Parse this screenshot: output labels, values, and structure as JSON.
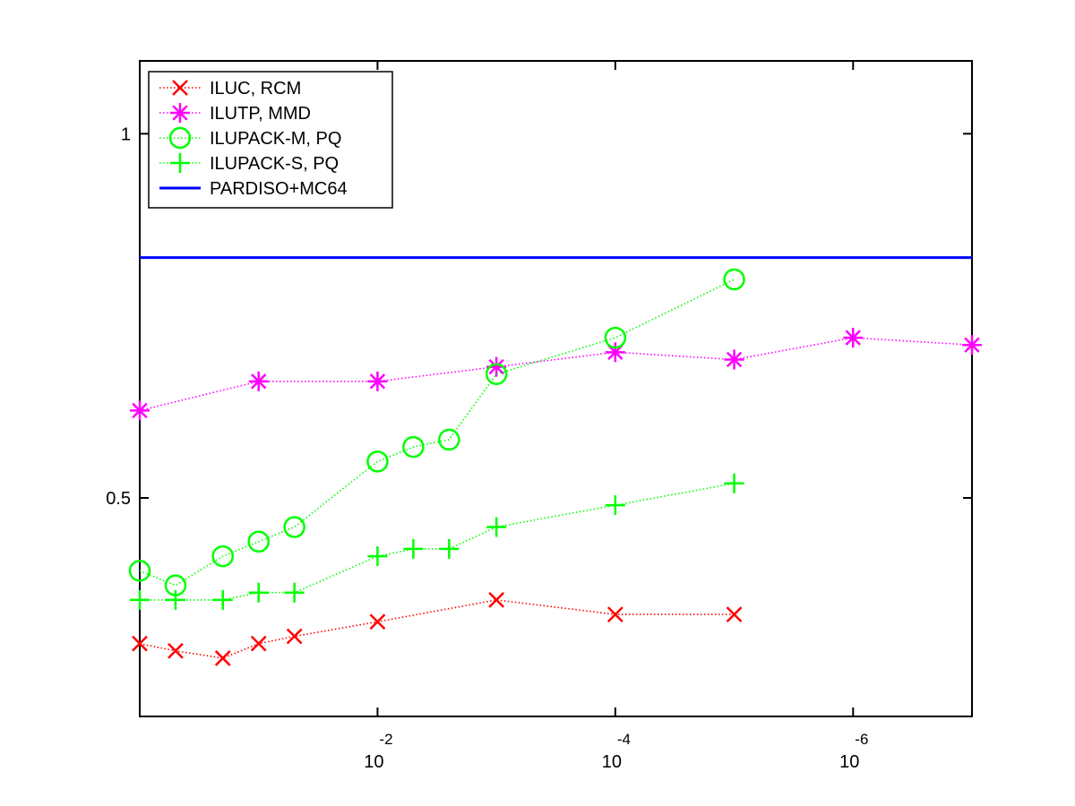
{
  "chart_data": {
    "type": "line",
    "x_scale": "log-reversed",
    "xlim": [
      1,
      1e-07
    ],
    "ylim": [
      0.2,
      1.1
    ],
    "grid": false,
    "legend_position": "top-left",
    "x_ticks": [
      {
        "value": 0.01,
        "base": "10",
        "exp": "-2"
      },
      {
        "value": 0.0001,
        "base": "10",
        "exp": "-4"
      },
      {
        "value": 1e-06,
        "base": "10",
        "exp": "-6"
      }
    ],
    "y_ticks": [
      {
        "value": 0.5,
        "label": "0.5"
      },
      {
        "value": 1,
        "label": "1"
      }
    ],
    "series": [
      {
        "name": "ILUC, RCM",
        "color": "#ff0000",
        "marker": "x",
        "line": "dotted",
        "x": [
          1,
          0.5,
          0.2,
          0.1,
          0.05,
          0.01,
          0.001,
          0.0001,
          1e-05
        ],
        "y": [
          0.3,
          0.29,
          0.28,
          0.3,
          0.31,
          0.33,
          0.36,
          0.34,
          0.34
        ]
      },
      {
        "name": "ILUTP, MMD",
        "color": "#ff00ff",
        "marker": "asterisk",
        "line": "dotted",
        "x": [
          1,
          0.1,
          0.01,
          0.001,
          0.0001,
          1e-05,
          1e-06,
          1e-07
        ],
        "y": [
          0.62,
          0.66,
          0.66,
          0.68,
          0.7,
          0.69,
          0.72,
          0.71
        ]
      },
      {
        "name": "ILUPACK-M, PQ",
        "color": "#00ff00",
        "marker": "circle",
        "line": "dotted",
        "x": [
          1,
          0.5,
          0.2,
          0.1,
          0.05,
          0.01,
          0.005,
          0.0025,
          0.001,
          0.0001,
          1e-05
        ],
        "y": [
          0.4,
          0.38,
          0.42,
          0.44,
          0.46,
          0.55,
          0.57,
          0.58,
          0.67,
          0.72,
          0.8
        ]
      },
      {
        "name": "ILUPACK-S, PQ",
        "color": "#00ff00",
        "marker": "plus",
        "line": "dotted",
        "x": [
          1,
          0.5,
          0.2,
          0.1,
          0.05,
          0.01,
          0.005,
          0.0025,
          0.001,
          0.0001,
          1e-05
        ],
        "y": [
          0.36,
          0.36,
          0.36,
          0.37,
          0.37,
          0.42,
          0.43,
          0.43,
          0.46,
          0.49,
          0.52
        ]
      },
      {
        "name": "PARDISO+MC64",
        "color": "#0000ff",
        "marker": "none",
        "line": "solid",
        "x": [
          1,
          1e-07
        ],
        "y": [
          0.83,
          0.83
        ]
      }
    ]
  }
}
